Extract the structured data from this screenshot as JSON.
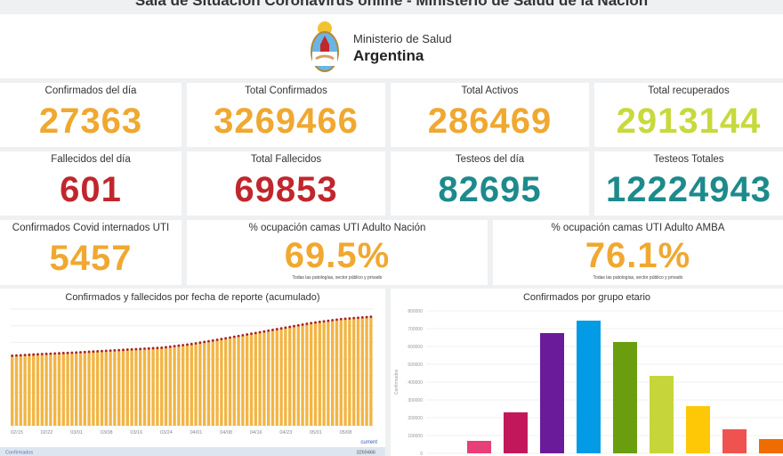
{
  "page_title": "Sala de Situación Coronavirus online - Ministerio de Salud de la Nación",
  "header": {
    "ministry": "Ministerio de Salud",
    "country": "Argentina"
  },
  "colors": {
    "orange": "#f0a830",
    "red": "#c0272d",
    "teal": "#1d8a8c",
    "lime": "#c8d93c"
  },
  "cards": [
    {
      "label": "Confirmados del día",
      "value": "27363",
      "color": "#f0a830"
    },
    {
      "label": "Total Confirmados",
      "value": "3269466",
      "color": "#f0a830"
    },
    {
      "label": "Total Activos",
      "value": "286469",
      "color": "#f0a830"
    },
    {
      "label": "Total recuperados",
      "value": "2913144",
      "color": "#c8d93c"
    },
    {
      "label": "Fallecidos del día",
      "value": "601",
      "color": "#c0272d"
    },
    {
      "label": "Total Fallecidos",
      "value": "69853",
      "color": "#c0272d"
    },
    {
      "label": "Testeos del día",
      "value": "82695",
      "color": "#1d8a8c"
    },
    {
      "label": "Testeos Totales",
      "value": "12224943",
      "color": "#1d8a8c"
    },
    {
      "label": "Confirmados Covid internados UTI",
      "value": "5457",
      "color": "#f0a830"
    },
    {
      "label": "% ocupación camas UTI Adulto Nación",
      "value": "69.5%",
      "color": "#f0a830",
      "note": "Todas las patologías, sector público y privado"
    },
    {
      "label": "% ocupación camas UTI Adulto AMBA",
      "value": "76.1%",
      "color": "#f0a830",
      "note": "Todas las patologías, sector público y privado"
    }
  ],
  "chart_data": [
    {
      "type": "bar",
      "title": "Confirmados y fallecidos por fecha de reporte (acumulado)",
      "ylim": [
        0,
        3500000
      ],
      "x_ticks": [
        "02/15",
        "02/22",
        "03/01",
        "03/08",
        "03/16",
        "03/24",
        "04/01",
        "04/08",
        "04/16",
        "04/23",
        "05/01",
        "05/08"
      ],
      "weekly_values": [
        2100000,
        2150000,
        2190000,
        2240000,
        2290000,
        2340000,
        2450000,
        2600000,
        2760000,
        2920000,
        3080000,
        3200000,
        3269466
      ],
      "legend_header": "current",
      "legend": [
        {
          "name": "Confirmados",
          "value": "3269466"
        }
      ]
    },
    {
      "type": "bar",
      "title": "Confirmados por grupo etario",
      "ylabel": "Confirmados",
      "ylim": [
        0,
        800000
      ],
      "y_ticks": [
        "0",
        "100000",
        "200000",
        "300000",
        "400000",
        "500000",
        "600000",
        "700000",
        "800000"
      ],
      "values": [
        70000,
        230000,
        675000,
        745000,
        625000,
        435000,
        265000,
        135000,
        80000
      ],
      "bar_colors": [
        "#e83e7a",
        "#c2185b",
        "#6a1b9a",
        "#039be5",
        "#6a9e0e",
        "#c6d63a",
        "#ffc807",
        "#ef5350",
        "#ef6c00"
      ]
    }
  ]
}
